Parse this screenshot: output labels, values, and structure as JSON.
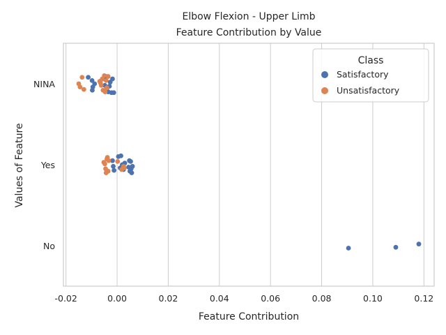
{
  "chart_data": {
    "type": "scatter",
    "title": "Elbow Flexion - Upper Limb",
    "subtitle": "Feature Contribution by Value",
    "xlabel": "Feature Contribution",
    "ylabel": "Values of Feature",
    "xlim": [
      -0.021,
      0.124
    ],
    "xticks": [
      "-0.02",
      "0.00",
      "0.02",
      "0.04",
      "0.06",
      "0.08",
      "0.10",
      "0.12"
    ],
    "xtick_values": [
      -0.02,
      0.0,
      0.02,
      0.04,
      0.06,
      0.08,
      0.1,
      0.12
    ],
    "categories": [
      "NINA",
      "Yes",
      "No"
    ],
    "grid": "vertical",
    "legend": {
      "title": "Class",
      "position": "top-right",
      "entries": [
        {
          "label": "Satisfactory",
          "color": "#4c72b0"
        },
        {
          "label": "Unsatisfactory",
          "color": "#dd8452"
        }
      ]
    },
    "series": [
      {
        "name": "Satisfactory",
        "color": "#4c72b0",
        "points": [
          {
            "category": "NINA",
            "x": -0.0113,
            "jitter": -0.08
          },
          {
            "category": "NINA",
            "x": -0.0098,
            "jitter": -0.04
          },
          {
            "category": "NINA",
            "x": -0.0095,
            "jitter": 0.04
          },
          {
            "category": "NINA",
            "x": -0.0097,
            "jitter": 0.08
          },
          {
            "category": "NINA",
            "x": -0.0088,
            "jitter": 0.0
          },
          {
            "category": "NINA",
            "x": -0.0055,
            "jitter": -0.06
          },
          {
            "category": "NINA",
            "x": -0.0048,
            "jitter": 0.02
          },
          {
            "category": "NINA",
            "x": -0.0044,
            "jitter": -0.09
          },
          {
            "category": "NINA",
            "x": -0.004,
            "jitter": 0.06
          },
          {
            "category": "NINA",
            "x": -0.0035,
            "jitter": 0.1
          },
          {
            "category": "NINA",
            "x": -0.003,
            "jitter": 0.03
          },
          {
            "category": "NINA",
            "x": -0.0027,
            "jitter": -0.02
          },
          {
            "category": "NINA",
            "x": -0.0022,
            "jitter": 0.11
          },
          {
            "category": "NINA",
            "x": -0.0018,
            "jitter": -0.06
          },
          {
            "category": "NINA",
            "x": -0.0013,
            "jitter": 0.11
          },
          {
            "category": "Yes",
            "x": -0.0018,
            "jitter": -0.05
          },
          {
            "category": "Yes",
            "x": -0.0015,
            "jitter": 0.02
          },
          {
            "category": "Yes",
            "x": -0.0012,
            "jitter": 0.07
          },
          {
            "category": "Yes",
            "x": 0.0005,
            "jitter": -0.1
          },
          {
            "category": "Yes",
            "x": 0.0012,
            "jitter": 0.04
          },
          {
            "category": "Yes",
            "x": 0.0015,
            "jitter": -0.11
          },
          {
            "category": "Yes",
            "x": 0.002,
            "jitter": 0.0
          },
          {
            "category": "Yes",
            "x": 0.0025,
            "jitter": 0.06
          },
          {
            "category": "Yes",
            "x": 0.003,
            "jitter": -0.02
          },
          {
            "category": "Yes",
            "x": 0.0045,
            "jitter": 0.03
          },
          {
            "category": "Yes",
            "x": 0.0048,
            "jitter": -0.05
          },
          {
            "category": "Yes",
            "x": 0.005,
            "jitter": 0.08
          },
          {
            "category": "Yes",
            "x": 0.0053,
            "jitter": -0.04
          },
          {
            "category": "Yes",
            "x": 0.0055,
            "jitter": 0.05
          },
          {
            "category": "Yes",
            "x": 0.0057,
            "jitter": 0.1
          },
          {
            "category": "Yes",
            "x": 0.006,
            "jitter": 0.02
          },
          {
            "category": "No",
            "x": 0.0905,
            "jitter": 0.03
          },
          {
            "category": "No",
            "x": 0.109,
            "jitter": 0.02
          },
          {
            "category": "No",
            "x": 0.118,
            "jitter": -0.02
          }
        ]
      },
      {
        "name": "Unsatisfactory",
        "color": "#dd8452",
        "points": [
          {
            "category": "NINA",
            "x": -0.015,
            "jitter": 0.0
          },
          {
            "category": "NINA",
            "x": -0.0145,
            "jitter": 0.04
          },
          {
            "category": "NINA",
            "x": -0.0137,
            "jitter": -0.08
          },
          {
            "category": "NINA",
            "x": -0.013,
            "jitter": 0.07
          },
          {
            "category": "NINA",
            "x": -0.0068,
            "jitter": -0.03
          },
          {
            "category": "NINA",
            "x": -0.0065,
            "jitter": -0.01
          },
          {
            "category": "NINA",
            "x": -0.0062,
            "jitter": 0.02
          },
          {
            "category": "NINA",
            "x": -0.0058,
            "jitter": -0.06
          },
          {
            "category": "NINA",
            "x": -0.0055,
            "jitter": 0.08
          },
          {
            "category": "NINA",
            "x": -0.005,
            "jitter": -0.1
          },
          {
            "category": "NINA",
            "x": -0.0047,
            "jitter": 0.1
          },
          {
            "category": "NINA",
            "x": -0.0043,
            "jitter": -0.04
          },
          {
            "category": "NINA",
            "x": -0.004,
            "jitter": 0.05
          },
          {
            "category": "NINA",
            "x": -0.0035,
            "jitter": -0.09
          },
          {
            "category": "Yes",
            "x": -0.0052,
            "jitter": -0.03
          },
          {
            "category": "Yes",
            "x": -0.0048,
            "jitter": -0.01
          },
          {
            "category": "Yes",
            "x": -0.0045,
            "jitter": 0.05
          },
          {
            "category": "Yes",
            "x": -0.0043,
            "jitter": 0.1
          },
          {
            "category": "Yes",
            "x": -0.004,
            "jitter": -0.07
          },
          {
            "category": "Yes",
            "x": -0.0038,
            "jitter": -0.09
          },
          {
            "category": "Yes",
            "x": -0.0035,
            "jitter": 0.08
          },
          {
            "category": "Yes",
            "x": -0.0033,
            "jitter": -0.05
          },
          {
            "category": "Yes",
            "x": 0.0002,
            "jitter": -0.04
          },
          {
            "category": "Yes",
            "x": 0.0018,
            "jitter": 0.06
          },
          {
            "category": "Yes",
            "x": 0.0025,
            "jitter": 0.02
          },
          {
            "category": "Yes",
            "x": 0.0028,
            "jitter": 0.04
          }
        ]
      }
    ]
  }
}
